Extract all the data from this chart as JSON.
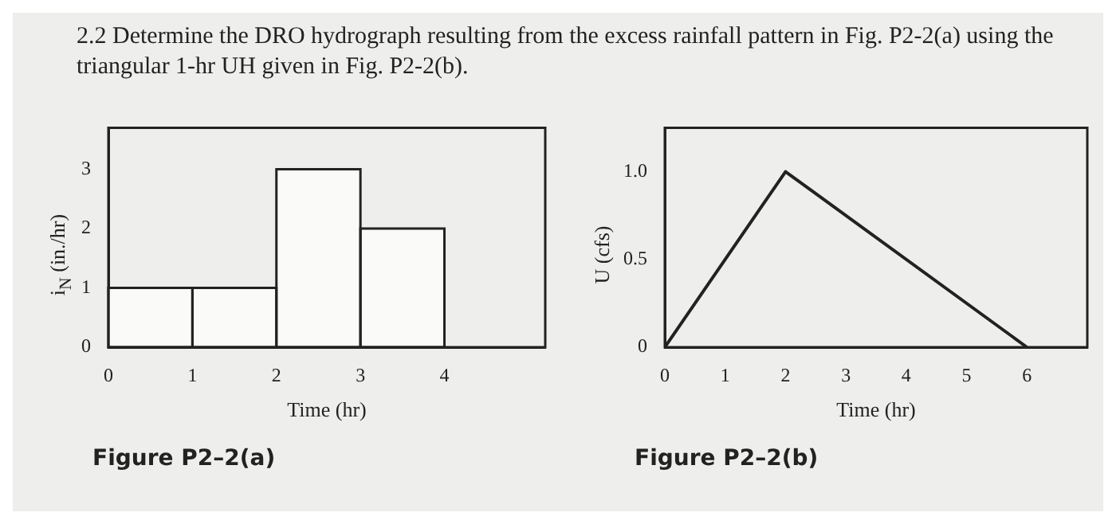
{
  "chart_data": [
    {
      "type": "histogram",
      "title": "2.2 Determine the DRO hydrograph resulting from the excess rainfall pattern in Fig. P2-2(a) using the triangular 1-hr UH given in Fig. P2-2(b).",
      "bins": [
        0,
        1,
        2,
        3,
        4
      ],
      "values": [
        1,
        1,
        3,
        2
      ],
      "color": "#fafaf8",
      "xlabel": "Time (hr)",
      "ylabel": "i$_{N}$ (in./hr)",
      "xlim": [
        0,
        5.2
      ],
      "xticks": [
        0,
        1,
        2,
        3,
        4
      ],
      "ylim": [
        0,
        3.7
      ],
      "yticks": [
        0,
        1,
        2,
        3
      ],
      "grid": false,
      "legend": false,
      "annotations": [
        "Figure P2–2(a)"
      ]
    },
    {
      "type": "line",
      "x": [
        0,
        2,
        6
      ],
      "values": [
        0,
        1,
        0
      ],
      "color": "#222222",
      "xlabel": "Time (hr)",
      "ylabel": "U (cfs)",
      "xlim": [
        0,
        7
      ],
      "xticks": [
        0,
        1,
        2,
        3,
        4,
        5,
        6
      ],
      "ylim": [
        0,
        1.25
      ],
      "yticks": [
        0,
        0.5,
        {
          "value": 1,
          "label": "1.0"
        }
      ],
      "grid": false,
      "legend": false,
      "marker": "none",
      "annotations": [
        "Figure P2–2(b)"
      ]
    }
  ]
}
